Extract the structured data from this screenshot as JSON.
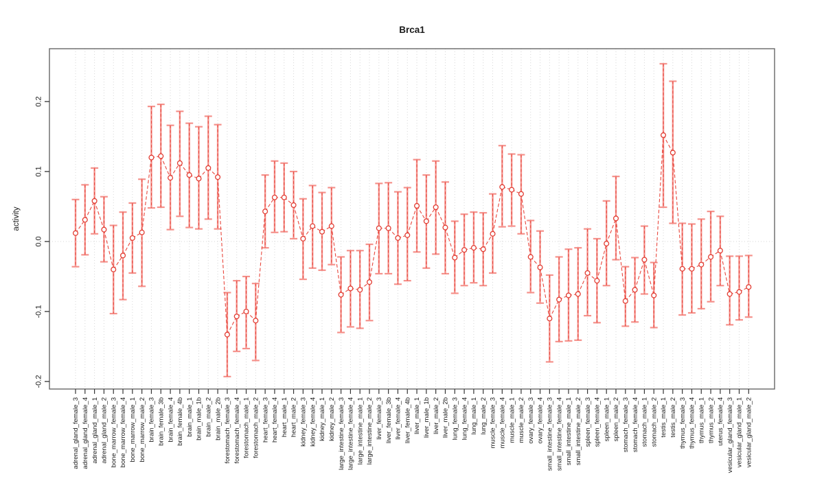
{
  "chart_data": {
    "type": "scatter",
    "subtype": "errorbar",
    "title": "Brca1",
    "xlabel": "",
    "ylabel": "activity",
    "ylim": [
      -0.21,
      0.275
    ],
    "yticks": [
      -0.2,
      -0.1,
      0.0,
      0.1,
      0.2
    ],
    "ytick_labels": [
      "-0.2",
      "-0.1",
      "0.0",
      "0.1",
      "0.2"
    ],
    "grid": "dotted vertical gridline at every category; dotted horizontal line at y=0 only",
    "legend": "none",
    "categories": [
      "adrenal_gland_female_3",
      "adrenal_gland_female_4",
      "adrenal_gland_male_1",
      "adrenal_gland_male_2",
      "bone_marrow_female_3",
      "bone_marrow_female_4",
      "bone_marrow_male_1",
      "bone_marrow_male_2",
      "brain_female_3",
      "brain_female_3b",
      "brain_female_4",
      "brain_female_4b",
      "brain_male_1",
      "brain_male_1b",
      "brain_male_2",
      "brain_male_2b",
      "forestomach_female_3",
      "forestomach_female_4",
      "forestomach_male_1",
      "forestomach_male_2",
      "heart_female_3",
      "heart_female_4",
      "heart_male_1",
      "heart_male_2",
      "kidney_female_3",
      "kidney_female_4",
      "kidney_male_1",
      "kidney_male_2",
      "large_intestine_female_3",
      "large_intestine_female_4",
      "large_intestine_male_1",
      "large_intestine_male_2",
      "liver_female_3",
      "liver_female_3b",
      "liver_female_4",
      "liver_female_4b",
      "liver_male_1",
      "liver_male_1b",
      "liver_male_2",
      "liver_male_2b",
      "lung_female_3",
      "lung_female_4",
      "lung_male_1",
      "lung_male_2",
      "muscle_female_3",
      "muscle_female_4",
      "muscle_male_1",
      "muscle_male_2",
      "ovary_female_3",
      "ovary_female_4",
      "small_intestine_female_3",
      "small_intestine_female_4",
      "small_intestine_male_1",
      "small_intestine_male_2",
      "spleen_female_3",
      "spleen_female_4",
      "spleen_male_1",
      "spleen_male_2",
      "stomach_female_3",
      "stomach_female_4",
      "stomach_male_1",
      "stomach_male_2",
      "testis_male_1",
      "testis_male_2",
      "thymus_female_3",
      "thymus_female_4",
      "thymus_male_1",
      "thymus_male_2",
      "uterus_female_4",
      "vesicular_gland_female_3",
      "vesicular_gland_male_1",
      "vesicular_gland_male_2"
    ],
    "values": [
      0.012,
      0.031,
      0.058,
      0.017,
      -0.04,
      -0.02,
      0.005,
      0.013,
      0.12,
      0.122,
      0.091,
      0.112,
      0.095,
      0.09,
      0.105,
      0.092,
      -0.133,
      -0.107,
      -0.1,
      -0.113,
      0.043,
      0.063,
      0.063,
      0.052,
      0.004,
      0.022,
      0.014,
      0.022,
      -0.076,
      -0.067,
      -0.069,
      -0.058,
      0.019,
      0.019,
      0.005,
      0.009,
      0.051,
      0.029,
      0.049,
      0.02,
      -0.023,
      -0.012,
      -0.009,
      -0.011,
      0.011,
      0.078,
      0.074,
      0.068,
      -0.022,
      -0.037,
      -0.11,
      -0.083,
      -0.077,
      -0.075,
      -0.045,
      -0.056,
      -0.003,
      0.033,
      -0.085,
      -0.069,
      -0.026,
      -0.077,
      0.152,
      0.127,
      -0.039,
      -0.039,
      -0.033,
      -0.022,
      -0.013,
      -0.075,
      -0.072,
      -0.065
    ],
    "lower": [
      -0.036,
      -0.019,
      0.011,
      -0.029,
      -0.103,
      -0.083,
      -0.045,
      -0.064,
      0.048,
      0.049,
      0.017,
      0.036,
      0.02,
      0.018,
      0.032,
      0.018,
      -0.193,
      -0.157,
      -0.153,
      -0.17,
      -0.009,
      0.013,
      0.014,
      0.004,
      -0.054,
      -0.038,
      -0.041,
      -0.033,
      -0.13,
      -0.122,
      -0.124,
      -0.113,
      -0.046,
      -0.046,
      -0.061,
      -0.056,
      -0.015,
      -0.038,
      -0.018,
      -0.046,
      -0.074,
      -0.063,
      -0.059,
      -0.063,
      -0.045,
      0.021,
      0.022,
      0.011,
      -0.073,
      -0.088,
      -0.172,
      -0.143,
      -0.142,
      -0.141,
      -0.106,
      -0.116,
      -0.063,
      -0.026,
      -0.121,
      -0.115,
      -0.075,
      -0.123,
      0.049,
      0.026,
      -0.105,
      -0.102,
      -0.096,
      -0.086,
      -0.063,
      -0.119,
      -0.112,
      -0.108
    ],
    "upper": [
      0.06,
      0.081,
      0.105,
      0.064,
      0.023,
      0.042,
      0.055,
      0.089,
      0.193,
      0.196,
      0.166,
      0.186,
      0.169,
      0.164,
      0.179,
      0.167,
      -0.073,
      -0.056,
      -0.05,
      -0.06,
      0.095,
      0.115,
      0.112,
      0.1,
      0.061,
      0.08,
      0.07,
      0.077,
      -0.022,
      -0.013,
      -0.013,
      -0.004,
      0.083,
      0.084,
      0.071,
      0.077,
      0.117,
      0.095,
      0.115,
      0.085,
      0.029,
      0.039,
      0.042,
      0.041,
      0.068,
      0.137,
      0.125,
      0.124,
      0.03,
      0.015,
      -0.048,
      -0.022,
      -0.011,
      -0.009,
      0.018,
      0.004,
      0.058,
      0.093,
      -0.036,
      -0.023,
      0.022,
      -0.03,
      0.254,
      0.229,
      0.026,
      0.025,
      0.032,
      0.043,
      0.036,
      -0.021,
      -0.021,
      -0.02
    ],
    "colors": {
      "error_bar": "#f5918b",
      "point": "#e23c32",
      "connector": "#e8463c",
      "grid": "#d6d6d6",
      "frame": "#666666",
      "tick": "#333333",
      "background": "#ffffff"
    }
  }
}
